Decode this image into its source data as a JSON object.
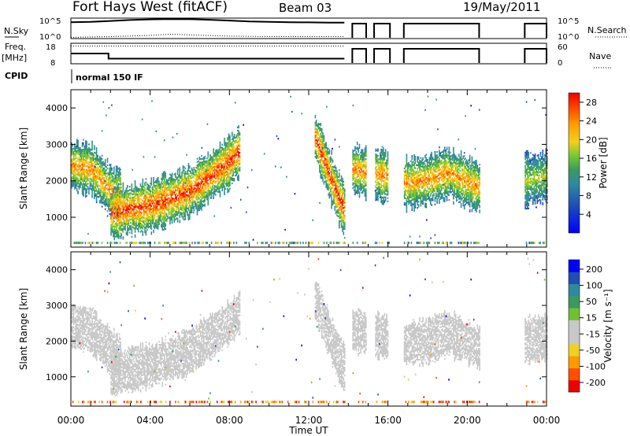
{
  "header": {
    "title": "Fort Hays West (fitACF)",
    "beam": "Beam 03",
    "date": "19/May/2011"
  },
  "status_labels": {
    "nsky": "N.Sky",
    "nsky_top": "10^5",
    "nsky_bottom": "10^0",
    "nsearch": "N.Search",
    "nsearch_top": "10^5",
    "nsearch_bottom": "10^0",
    "freq_line1": "Freq.",
    "freq_line2": "[MHz]",
    "freq_top": "18",
    "freq_bottom": "8",
    "nave": "Nave",
    "nave_top": "60",
    "nave_bottom": "0",
    "cpid": "CPID",
    "cpid_value": "normal 150 IF"
  },
  "colors": {
    "power_scale": [
      "#0000ff",
      "#1f4fb4",
      "#2f8aa0",
      "#3a9a60",
      "#77c830",
      "#f0d020",
      "#ff9a00",
      "#ff5000",
      "#ee0000"
    ],
    "velocity_scale": [
      "#ee0000",
      "#ff5000",
      "#ff9a00",
      "#f0d020",
      "#c8c8c8",
      "#c8c8c8",
      "#70c030",
      "#3a9a60",
      "#2f8aa0",
      "#1f4fb4",
      "#0000ff"
    ]
  },
  "chart_data": [
    {
      "type": "line",
      "panel": "N.Sky / N.Search",
      "ylabel": "N.Sky",
      "y2label": "N.Search",
      "y_scale": "log",
      "ylim": [
        "10^0",
        "10^5"
      ],
      "series": [
        {
          "name": "N.Sky",
          "style": "solid",
          "x": [
            0.0,
            1.0,
            2.0,
            3.0,
            4.0,
            5.0,
            6.0,
            7.0,
            8.0,
            9.0,
            10.0,
            11.0,
            12.0,
            13.0,
            13.8
          ],
          "values": [
            10000,
            12000,
            20000,
            35000,
            50000,
            60000,
            55000,
            40000,
            25000,
            15000,
            12000,
            10000,
            9000,
            8000,
            8000
          ]
        },
        {
          "name": "N.Search",
          "style": "dotted",
          "x": [
            0.0,
            2.0,
            4.0,
            5.0,
            6.0,
            8.0,
            10.0,
            12.0,
            13.8
          ],
          "values": [
            2,
            3,
            6,
            12,
            8,
            4,
            3,
            3,
            3
          ]
        }
      ]
    },
    {
      "type": "line",
      "panel": "Freq. / Nave",
      "ylabel": "Freq. [MHz]",
      "y2label": "Nave",
      "ylim": [
        8,
        18
      ],
      "y2lim": [
        0,
        60
      ],
      "series": [
        {
          "name": "Freq.",
          "style": "solid",
          "x": [
            0.0,
            1.9,
            1.9,
            13.8
          ],
          "values": [
            13,
            13,
            10.5,
            10.5
          ]
        },
        {
          "name": "Nave",
          "style": "dotted",
          "x": [
            0.0,
            13.8
          ],
          "values": [
            52,
            52
          ]
        }
      ],
      "data_gaps_ut": [
        [
          13.8,
          14.2
        ],
        [
          14.9,
          15.3
        ],
        [
          16.1,
          16.8
        ],
        [
          20.6,
          22.9
        ]
      ]
    },
    {
      "type": "heatmap",
      "panel": "Power",
      "xlabel": "",
      "ylabel": "Slant Range [km]",
      "x_ticks": [
        "00:00",
        "04:00",
        "08:00",
        "12:00",
        "16:00",
        "20:00",
        "00:00"
      ],
      "y_ticks": [
        1000,
        2000,
        3000,
        4000
      ],
      "xlim_hours": [
        0,
        24
      ],
      "ylim": [
        180,
        4500
      ],
      "colorbar": {
        "label": "Power [dB]",
        "ticks": [
          4,
          8,
          12,
          16,
          20,
          24,
          28
        ],
        "range": [
          0,
          30
        ]
      },
      "features": [
        {
          "name": "dusk band",
          "points_ut_km": [
            [
              0.0,
              2400
            ],
            [
              1.0,
              2300
            ],
            [
              2.0,
              1700
            ],
            [
              2.5,
              1550
            ]
          ],
          "peak_db": 24
        },
        {
          "name": "main ascending band",
          "points_ut_km": [
            [
              2.0,
              1100
            ],
            [
              4.0,
              1300
            ],
            [
              6.0,
              1700
            ],
            [
              8.0,
              2500
            ],
            [
              8.5,
              2800
            ]
          ],
          "peak_db": 28
        },
        {
          "name": "late descending band",
          "points_ut_km": [
            [
              12.3,
              3200
            ],
            [
              13.0,
              2200
            ],
            [
              13.5,
              1500
            ],
            [
              13.8,
              1200
            ]
          ],
          "peak_db": 28
        },
        {
          "name": "second period band",
          "points_ut_km": [
            [
              14.2,
              2300
            ],
            [
              15.0,
              2200
            ],
            [
              16.0,
              2100
            ]
          ],
          "peak_db": 24
        },
        {
          "name": "third period band",
          "points_ut_km": [
            [
              16.8,
              1900
            ],
            [
              18.0,
              2000
            ],
            [
              19.0,
              2200
            ],
            [
              20.6,
              1800
            ]
          ],
          "peak_db": 24
        },
        {
          "name": "fourth period band",
          "points_ut_km": [
            [
              22.9,
              2000
            ],
            [
              24.0,
              2100
            ]
          ],
          "peak_db": 18
        }
      ]
    },
    {
      "type": "heatmap",
      "panel": "Velocity",
      "xlabel": "Time UT",
      "ylabel": "Slant Range [km]",
      "x_ticks": [
        "00:00",
        "04:00",
        "08:00",
        "12:00",
        "16:00",
        "20:00",
        "00:00"
      ],
      "y_ticks": [
        1000,
        2000,
        3000,
        4000
      ],
      "xlim_hours": [
        0,
        24
      ],
      "ylim": [
        180,
        4500
      ],
      "colorbar": {
        "label": "Velocity [m s⁻¹]",
        "ticks": [
          200,
          100,
          50,
          15,
          -15,
          -50,
          -100,
          -200
        ],
        "range": [
          -250,
          250
        ]
      },
      "dominant_value": "ground scatter (-15 to 15)"
    }
  ]
}
